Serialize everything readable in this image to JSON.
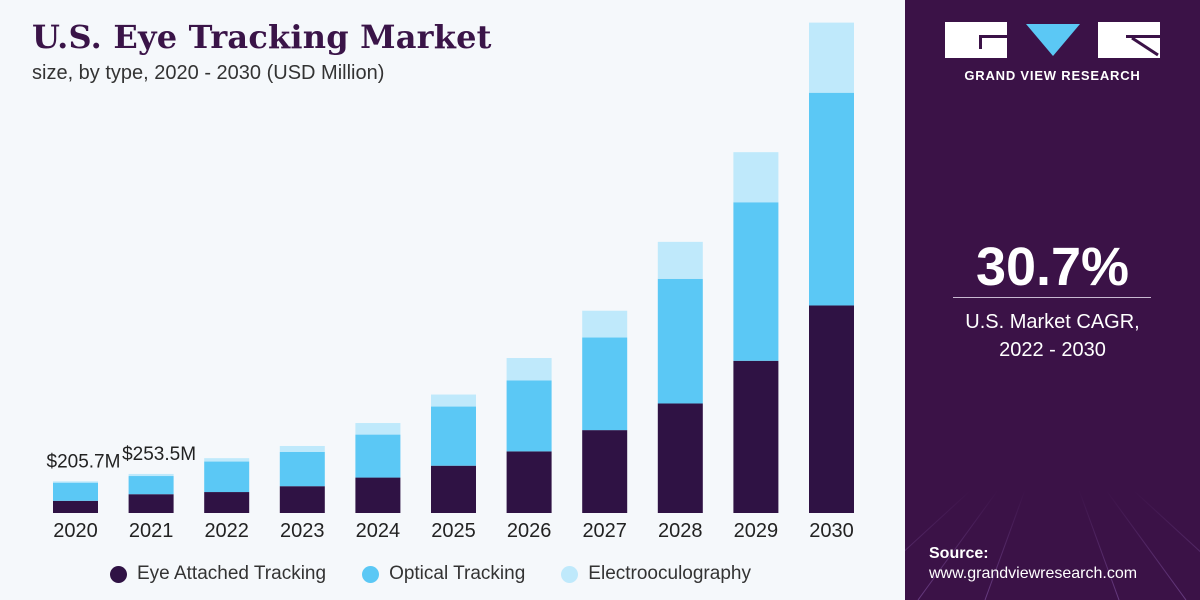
{
  "title": "U.S. Eye Tracking Market",
  "subtitle": "size, by type, 2020 - 2030 (USD Million)",
  "brand": {
    "name": "GRAND VIEW RESEARCH",
    "logo_text": "GVR"
  },
  "cagr": {
    "value": "30.7%",
    "label_line1": "U.S. Market CAGR,",
    "label_line2": "2022 - 2030"
  },
  "source": {
    "title": "Source:",
    "url": "www.grandviewresearch.com"
  },
  "colors": {
    "eye_attached": "#2f1244",
    "optical": "#5bc8f5",
    "electrooculography": "#bfe9fb",
    "side_panel": "#3b1247"
  },
  "chart_data": {
    "type": "bar",
    "stacked": true,
    "title": "U.S. Eye Tracking Market",
    "subtitle": "size, by type, 2020 - 2030 (USD Million)",
    "categories": [
      "2020",
      "2021",
      "2022",
      "2023",
      "2024",
      "2025",
      "2026",
      "2027",
      "2028",
      "2029",
      "2030"
    ],
    "series": [
      {
        "name": "Eye Attached Tracking",
        "color": "#2f1244",
        "values": [
          79,
          122,
          136,
          174,
          230,
          307,
          400,
          538,
          711,
          988,
          1347
        ]
      },
      {
        "name": "Optical Tracking",
        "color": "#5bc8f5",
        "values": [
          118,
          118,
          198,
          222,
          279,
          384,
          461,
          601,
          809,
          1029,
          1381
        ]
      },
      {
        "name": "Electrooculography",
        "color": "#bfe9fb",
        "values": [
          8.7,
          13.5,
          22,
          39,
          75,
          78,
          145,
          174,
          240,
          325,
          455
        ]
      }
    ],
    "data_labels": [
      {
        "category": "2020",
        "text": "$205.7M"
      },
      {
        "category": "2021",
        "text": "$253.5M"
      }
    ],
    "xlabel": "",
    "ylabel": "",
    "ylim": [
      0,
      3200
    ],
    "grid": false,
    "legend": "bottom"
  }
}
